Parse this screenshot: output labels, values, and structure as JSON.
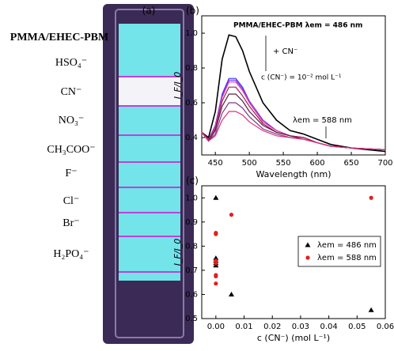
{
  "panel_a": {
    "label": "(a)",
    "title": "PMMA/EHEC-PBM",
    "anions": [
      "HSO₄⁻",
      "CN⁻",
      "NO₃⁻",
      "CH₃COO⁻",
      "F⁻",
      "Cl⁻",
      "Br⁻",
      "H₂PO₄⁻"
    ]
  },
  "chart_data": [
    {
      "type": "line",
      "panel_label": "(b)",
      "xlabel": "Wavelength (nm)",
      "ylabel": "I_F/I_0",
      "annotations": [
        "PMMA/EHEC-PBM λem = 486 nm",
        "+ CN⁻",
        "c (CN⁻) = 10⁻² mol L⁻¹",
        "λem = 588 nm"
      ],
      "x": [
        430,
        440,
        450,
        460,
        470,
        480,
        490,
        500,
        520,
        540,
        560,
        580,
        600,
        620,
        650,
        700
      ],
      "series": [
        {
          "color": "#000000",
          "values": [
            0.43,
            0.4,
            0.55,
            0.85,
            0.99,
            0.98,
            0.9,
            0.78,
            0.6,
            0.5,
            0.44,
            0.42,
            0.39,
            0.36,
            0.34,
            0.32
          ]
        },
        {
          "color": "#3a3aff",
          "values": [
            0.43,
            0.38,
            0.47,
            0.65,
            0.74,
            0.74,
            0.69,
            0.61,
            0.5,
            0.44,
            0.41,
            0.4,
            0.37,
            0.35,
            0.34,
            0.33
          ]
        },
        {
          "color": "#8a2be2",
          "values": [
            0.43,
            0.39,
            0.47,
            0.64,
            0.73,
            0.73,
            0.68,
            0.61,
            0.5,
            0.44,
            0.41,
            0.4,
            0.37,
            0.35,
            0.34,
            0.33
          ]
        },
        {
          "color": "#e040a0",
          "values": [
            0.43,
            0.39,
            0.46,
            0.63,
            0.72,
            0.72,
            0.67,
            0.6,
            0.49,
            0.44,
            0.41,
            0.4,
            0.37,
            0.35,
            0.34,
            0.33
          ]
        },
        {
          "color": "#a0205a",
          "values": [
            0.43,
            0.39,
            0.45,
            0.61,
            0.69,
            0.69,
            0.64,
            0.58,
            0.48,
            0.43,
            0.41,
            0.4,
            0.37,
            0.35,
            0.34,
            0.33
          ]
        },
        {
          "color": "#5a2040",
          "values": [
            0.43,
            0.38,
            0.44,
            0.58,
            0.65,
            0.65,
            0.61,
            0.55,
            0.47,
            0.43,
            0.41,
            0.39,
            0.37,
            0.35,
            0.34,
            0.33
          ]
        },
        {
          "color": "#7a3a8a",
          "values": [
            0.43,
            0.38,
            0.42,
            0.54,
            0.6,
            0.6,
            0.57,
            0.52,
            0.45,
            0.42,
            0.4,
            0.39,
            0.37,
            0.35,
            0.34,
            0.33
          ]
        },
        {
          "color": "#e0307a",
          "values": [
            0.43,
            0.38,
            0.41,
            0.5,
            0.55,
            0.55,
            0.53,
            0.49,
            0.44,
            0.41,
            0.4,
            0.39,
            0.37,
            0.35,
            0.34,
            0.33
          ]
        }
      ],
      "xlim": [
        430,
        700
      ],
      "xticks": [
        450,
        500,
        550,
        600,
        650,
        700
      ],
      "ylim": [
        0.3,
        1.1
      ],
      "yticks": [
        {
          "value": 0.4,
          "label": "0.4"
        },
        {
          "value": 0.6,
          "label": "0.6"
        },
        {
          "value": 0.8,
          "label": "0.8"
        },
        {
          "value": 1,
          "label": "1.0"
        }
      ]
    },
    {
      "type": "scatter",
      "panel_label": "(c)",
      "xlabel": "c (CN⁻) (mol L⁻¹)",
      "ylabel": "I_F/I_0",
      "legend": "center right",
      "series": [
        {
          "name": "λem = 486 nm",
          "color": "#000000",
          "marker": "triangle",
          "x": [
            0,
            0,
            0,
            0,
            0,
            0.0055,
            0.055
          ],
          "values": [
            1.0,
            0.75,
            0.74,
            0.73,
            0.72,
            0.6,
            0.535
          ]
        },
        {
          "name": "λem = 588 nm",
          "color": "#e02020",
          "marker": "circle",
          "x": [
            0,
            0,
            0,
            0,
            0,
            0,
            0,
            0.0055,
            0.055
          ],
          "values": [
            0.855,
            0.85,
            0.74,
            0.73,
            0.68,
            0.675,
            0.645,
            0.93,
            1.0
          ]
        }
      ],
      "xlim": [
        -0.005,
        0.06
      ],
      "xticks": [
        {
          "value": 0,
          "label": "0.00"
        },
        {
          "value": 0.01,
          "label": "0.01"
        },
        {
          "value": 0.02,
          "label": "0.02"
        },
        {
          "value": 0.03,
          "label": "0.03"
        },
        {
          "value": 0.04,
          "label": "0.04"
        },
        {
          "value": 0.05,
          "label": "0.05"
        },
        {
          "value": 0.06,
          "label": "0.06"
        }
      ],
      "ylim": [
        0.5,
        1.05
      ],
      "yticks": [
        0.5,
        0.6,
        0.7,
        0.8,
        0.9,
        {
          "value": 1,
          "label": "1.0"
        }
      ]
    }
  ]
}
